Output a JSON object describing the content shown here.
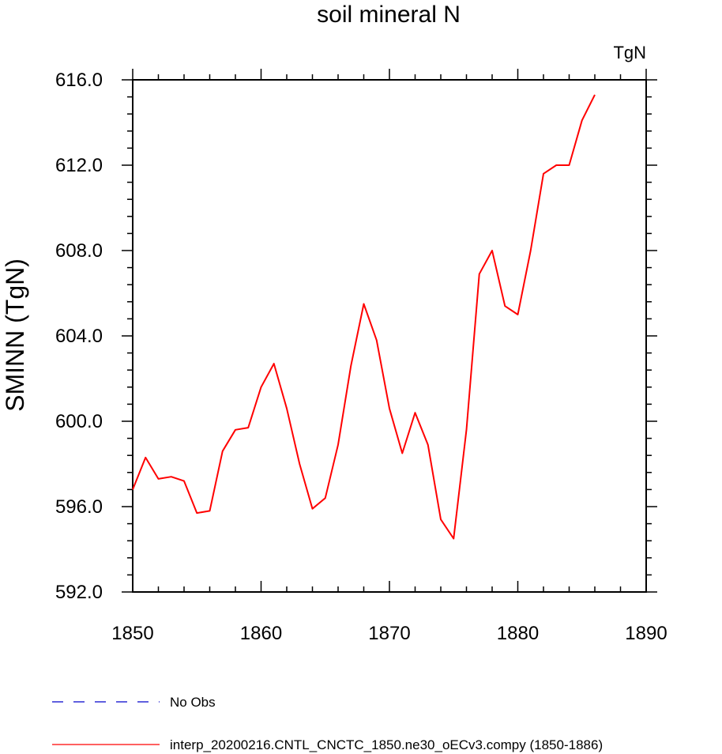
{
  "chart_data": {
    "type": "line",
    "title": "soil mineral N",
    "units": "TgN",
    "ylabel": "SMINN  (TgN)",
    "xlabel": "",
    "xlim": [
      1850,
      1890
    ],
    "ylim": [
      592,
      616
    ],
    "x_ticks": [
      "1850",
      "1860",
      "1870",
      "1880",
      "1890"
    ],
    "y_ticks": [
      "592.0",
      "596.0",
      "600.0",
      "604.0",
      "608.0",
      "612.0",
      "616.0"
    ],
    "grid": false,
    "legend_position": "bottom",
    "series": [
      {
        "name": "interp_20200216.CNTL_CNCTC_1850.ne30_oECv3.compy (1850-1886)",
        "color": "#ff0000",
        "style": "solid",
        "x": [
          1850,
          1851,
          1852,
          1853,
          1854,
          1855,
          1856,
          1857,
          1858,
          1859,
          1860,
          1861,
          1862,
          1863,
          1864,
          1865,
          1866,
          1867,
          1868,
          1869,
          1870,
          1871,
          1872,
          1873,
          1874,
          1875,
          1876,
          1877,
          1878,
          1879,
          1880,
          1881,
          1882,
          1883,
          1884,
          1885,
          1886
        ],
        "y": [
          596.8,
          598.3,
          597.3,
          597.4,
          597.2,
          595.7,
          595.8,
          598.6,
          599.6,
          599.7,
          601.6,
          602.7,
          600.6,
          598.0,
          595.9,
          596.4,
          598.9,
          602.6,
          605.5,
          603.8,
          600.6,
          598.5,
          600.4,
          598.9,
          595.4,
          594.5,
          599.6,
          606.9,
          608.0,
          605.4,
          605.0,
          608.0,
          611.6,
          612.0,
          612.0,
          614.1,
          615.3
        ]
      },
      {
        "name": "No Obs",
        "color": "#0000cc",
        "style": "dashed",
        "x": [],
        "y": []
      }
    ]
  }
}
